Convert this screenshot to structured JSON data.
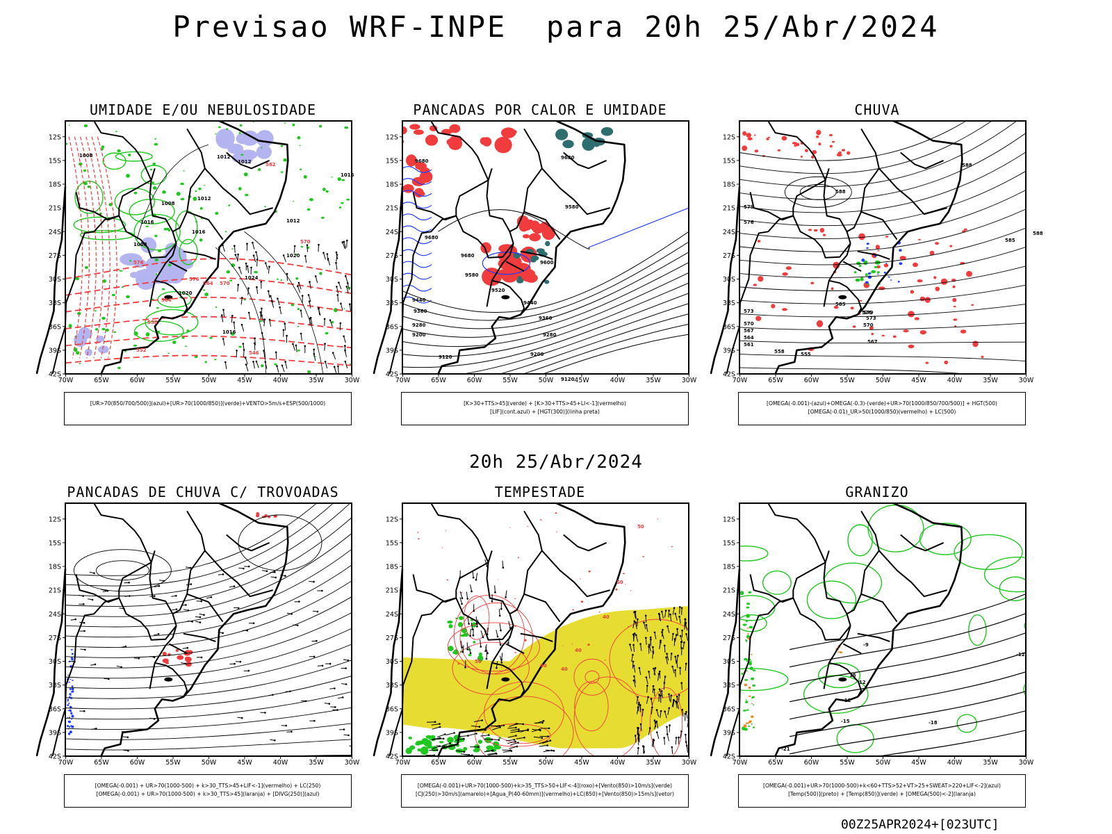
{
  "title": "Previsao WRF-INPE  para 20h 25/Abr/2024",
  "mid_date": "20h 25/Abr/2024",
  "footer": "00Z25APR2024+[023UTC]",
  "colors": {
    "red": "#f03c3c",
    "blue": "#1f3cff",
    "green": "#1ec81e",
    "lavender": "#b4b4f0",
    "teal": "#2e6e6e",
    "yellow": "#e6dc32",
    "orange": "#e68c28",
    "black": "#000000"
  },
  "chart_data": [
    {
      "type": "map",
      "title": "UMIDADE E/OU NEBULOSIDADE",
      "legend": [
        "[UR>70(850/700/500)](azul)+[UR>70(1000/850)](verde)+VENTO>5m/s+ESP(500/1000)"
      ],
      "x_ticks": [
        "70W",
        "65W",
        "60W",
        "55W",
        "50W",
        "45W",
        "40W",
        "35W",
        "30W"
      ],
      "y_ticks": [
        "12S",
        "15S",
        "18S",
        "21S",
        "24S",
        "27S",
        "30S",
        "33S",
        "36S",
        "39S",
        "42S"
      ],
      "contour_labels": [
        "1008",
        "1012",
        "1012",
        "1016",
        "1012",
        "1008",
        "1016",
        "1020",
        "1016",
        "1008",
        "1012",
        "1016",
        "1020",
        "1024"
      ],
      "thickness_labels": [
        "576",
        "570",
        "564",
        "558",
        "552",
        "546",
        "582",
        "576",
        "570",
        "564"
      ]
    },
    {
      "type": "map",
      "title": "PANCADAS POR CALOR E UMIDADE",
      "legend": [
        "[K>30+TTS>45](verde) + [K>30+TTS>45+LI<-1](vermelho)",
        "[LIF](cont.azul) + [HGT(300)](linha preta)"
      ],
      "x_ticks": [
        "70W",
        "65W",
        "60W",
        "55W",
        "50W",
        "45W",
        "40W",
        "35W",
        "30W"
      ],
      "y_ticks": [
        "12S",
        "15S",
        "18S",
        "21S",
        "24S",
        "27S",
        "30S",
        "33S",
        "36S",
        "39S",
        "42S"
      ],
      "contour_labels": [
        "9680",
        "9680",
        "9580",
        "9600",
        "9520",
        "9440",
        "9360",
        "9280",
        "9200",
        "9120",
        "9440",
        "9360",
        "9280",
        "9200",
        "9120",
        "9680",
        "9580",
        "9680"
      ]
    },
    {
      "type": "map",
      "title": "CHUVA",
      "legend": [
        "[OMEGA(-0.001)-(azul)+OMEGA(-0.3)-(verde)+UR>70(1000/850/700/500)] + HGT(500)",
        "[OMEGA(-0.01)_UR>50(1000/850)(vermelho) + LC(500)"
      ],
      "x_ticks": [
        "70W",
        "65W",
        "60W",
        "55W",
        "50W",
        "45W",
        "40W",
        "35W",
        "30W"
      ],
      "y_ticks": [
        "12S",
        "15S",
        "18S",
        "21S",
        "24S",
        "27S",
        "30S",
        "33S",
        "36S",
        "39S",
        "42S"
      ],
      "contour_labels": [
        "588",
        "588",
        "585",
        "579",
        "576",
        "573",
        "570",
        "567",
        "564",
        "561",
        "558",
        "555",
        "588",
        "585",
        "579",
        "576",
        "573",
        "570",
        "567"
      ]
    },
    {
      "type": "map",
      "title": "PANCADAS DE CHUVA C/ TROVOADAS",
      "legend": [
        "[OMEGA(-0.001) + UR>70(1000-500) + k>30_TTS>45+LIF<-1](vermelho) + LC(250)",
        "[OMEGA(-0.001) + UR>70(1000-500) + k>30_TTS>45](laranja) + [DIVG(250)](azul)"
      ],
      "x_ticks": [
        "70W",
        "65W",
        "60W",
        "55W",
        "50W",
        "45W",
        "40W",
        "35W",
        "30W"
      ],
      "y_ticks": [
        "12S",
        "15S",
        "18S",
        "21S",
        "24S",
        "27S",
        "30S",
        "33S",
        "36S",
        "39S",
        "42S"
      ]
    },
    {
      "type": "map",
      "title": "TEMPESTADE",
      "legend": [
        "[OMEGA(-0.001)+UR>70(1000-500)+k>35_TTS>50+LIF<-4](roxo)+[Vento(850)>10m/s](verde)",
        "[CJ(250)>30m/s](amarelo)+[Agua_P(40-60mm)](vermelho)+LC(850)+[Vento(850)>15m/s](vetor)"
      ],
      "x_ticks": [
        "70W",
        "65W",
        "60W",
        "55W",
        "50W",
        "45W",
        "40W",
        "35W",
        "30W"
      ],
      "y_ticks": [
        "12S",
        "15S",
        "18S",
        "21S",
        "24S",
        "27S",
        "30S",
        "33S",
        "36S",
        "39S",
        "42S"
      ],
      "contour_labels": [
        "40",
        "50",
        "40",
        "50",
        "40",
        "40",
        "50"
      ]
    },
    {
      "type": "map",
      "title": "GRANIZO",
      "legend": [
        "[OMEGA(-0.001)+UR>70(1000-500)+k<60+TTS>52+VT>25+SWEAT>220+LIF<-2](azul)",
        "[Temp(500)](preto) + [Temp(850)](verde) + [OMEGA(500)<-2](laranja)"
      ],
      "x_ticks": [
        "70W",
        "65W",
        "60W",
        "55W",
        "50W",
        "45W",
        "40W",
        "35W",
        "30W"
      ],
      "y_ticks": [
        "12S",
        "15S",
        "18S",
        "21S",
        "24S",
        "27S",
        "30S",
        "33S",
        "36S",
        "39S",
        "42S"
      ],
      "contour_labels": [
        "-9",
        "-12",
        "-15",
        "-18",
        "-21",
        "-12",
        "12",
        "15"
      ]
    }
  ]
}
